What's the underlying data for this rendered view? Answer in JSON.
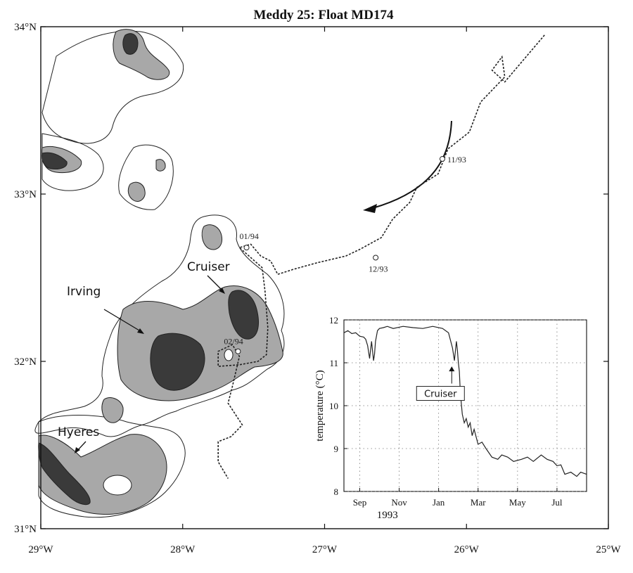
{
  "chart_data": [
    {
      "type": "map",
      "title": "Meddy 25: Float MD174",
      "lon_ticks": [
        "29°W",
        "28°W",
        "27°W",
        "26°W",
        "25°W"
      ],
      "lat_ticks": [
        "34°N",
        "33°N",
        "32°N",
        "31°N"
      ],
      "xlim": [
        -29,
        -25
      ],
      "ylim": [
        31,
        34
      ],
      "eddy_labels": [
        "Irving",
        "Cruiser",
        "Hyeres"
      ],
      "track_dates": [
        {
          "label": "11/93",
          "lon": -26.17,
          "lat": 33.21
        },
        {
          "label": "12/93",
          "lon": -26.64,
          "lat": 32.62
        },
        {
          "label": "01/94",
          "lon": -27.55,
          "lat": 32.68
        },
        {
          "label": "02/94",
          "lon": -27.61,
          "lat": 32.06
        }
      ],
      "float_track": [
        [
          -25.45,
          33.95
        ],
        [
          -25.6,
          33.8
        ],
        [
          -25.73,
          33.67
        ],
        [
          -25.82,
          33.74
        ],
        [
          -25.75,
          33.82
        ],
        [
          -25.73,
          33.7
        ],
        [
          -25.9,
          33.55
        ],
        [
          -25.98,
          33.37
        ],
        [
          -26.13,
          33.27
        ],
        [
          -26.2,
          33.12
        ],
        [
          -26.35,
          33.04
        ],
        [
          -26.4,
          32.95
        ],
        [
          -26.52,
          32.85
        ],
        [
          -26.6,
          32.74
        ],
        [
          -26.75,
          32.67
        ],
        [
          -26.85,
          32.63
        ],
        [
          -27.05,
          32.59
        ],
        [
          -27.22,
          32.55
        ],
        [
          -27.33,
          32.52
        ],
        [
          -27.38,
          32.6
        ],
        [
          -27.45,
          32.63
        ],
        [
          -27.52,
          32.7
        ],
        [
          -27.6,
          32.68
        ],
        [
          -27.52,
          32.62
        ],
        [
          -27.44,
          32.56
        ],
        [
          -27.42,
          32.42
        ],
        [
          -27.4,
          32.2
        ],
        [
          -27.41,
          32.04
        ],
        [
          -27.47,
          32.0
        ],
        [
          -27.6,
          31.98
        ],
        [
          -27.75,
          31.97
        ],
        [
          -27.75,
          32.06
        ],
        [
          -27.65,
          32.1
        ],
        [
          -27.6,
          32.03
        ],
        [
          -27.65,
          31.85
        ],
        [
          -27.68,
          31.75
        ],
        [
          -27.58,
          31.62
        ],
        [
          -27.66,
          31.55
        ],
        [
          -27.75,
          31.52
        ],
        [
          -27.75,
          31.4
        ],
        [
          -27.68,
          31.3
        ]
      ],
      "flow_arrow": "southwest"
    },
    {
      "type": "line",
      "ylabel": "temperature (°C)",
      "xlabel": "1993",
      "x_ticks": [
        "Sep",
        "Nov",
        "Jan",
        "Mar",
        "May",
        "Jul"
      ],
      "ylim": [
        8,
        12
      ],
      "y_ticks": [
        "8",
        "9",
        "10",
        "11",
        "12"
      ],
      "grid": true,
      "annotation": "Cruiser",
      "x_months": [
        0.0,
        0.2,
        0.4,
        0.6,
        0.8,
        1.0,
        1.1,
        1.2,
        1.3,
        1.4,
        1.5,
        1.55,
        1.6,
        1.7,
        1.8,
        2.0,
        2.2,
        2.5,
        3.0,
        3.5,
        4.0,
        4.5,
        5.0,
        5.3,
        5.5,
        5.6,
        5.7,
        5.75,
        5.8,
        5.85,
        5.9,
        6.0,
        6.1,
        6.2,
        6.3,
        6.4,
        6.5,
        6.6,
        6.8,
        7.0,
        7.2,
        7.5,
        7.8,
        8.0,
        8.3,
        8.6,
        9.0,
        9.3,
        9.6,
        10.0,
        10.3,
        10.6,
        10.8,
        11.0,
        11.2,
        11.5,
        11.8,
        12.0,
        12.3
      ],
      "values": [
        11.7,
        11.75,
        11.68,
        11.7,
        11.62,
        11.6,
        11.55,
        11.4,
        11.1,
        11.5,
        11.05,
        11.2,
        11.5,
        11.75,
        11.8,
        11.82,
        11.85,
        11.8,
        11.85,
        11.82,
        11.8,
        11.85,
        11.8,
        11.7,
        11.35,
        11.05,
        11.5,
        11.3,
        11.0,
        10.8,
        10.3,
        9.8,
        9.6,
        9.7,
        9.5,
        9.6,
        9.3,
        9.45,
        9.1,
        9.15,
        9.0,
        8.8,
        8.75,
        8.85,
        8.8,
        8.7,
        8.75,
        8.8,
        8.7,
        8.85,
        8.75,
        8.7,
        8.6,
        8.62,
        8.4,
        8.45,
        8.35,
        8.45,
        8.4
      ]
    }
  ]
}
